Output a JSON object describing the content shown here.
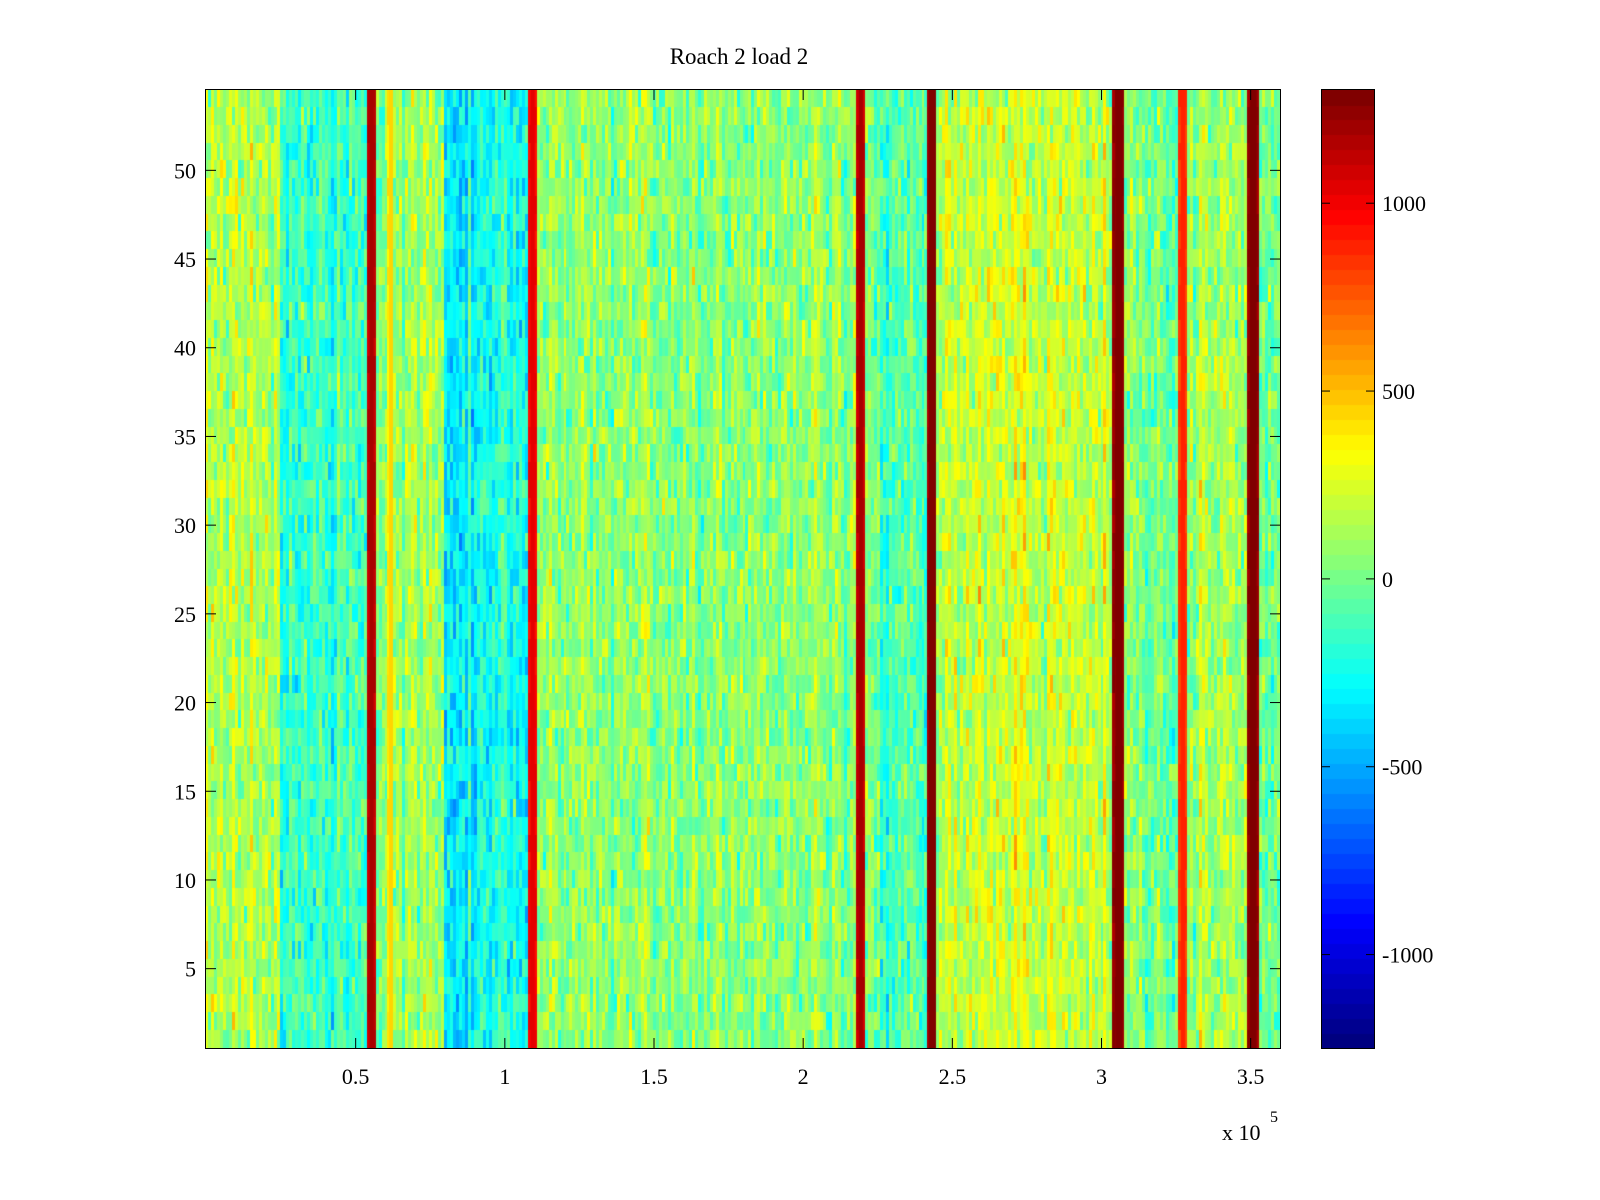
{
  "chart_data": {
    "type": "heatmap",
    "title": "Roach 2 load 2",
    "xlabel": "",
    "ylabel": "",
    "x_exponent_label": "x 10",
    "x_exponent_power": "5",
    "xlim": [
      0,
      360000
    ],
    "ylim": [
      0.5,
      54.5
    ],
    "rows": 54,
    "columns": 360,
    "x_ticks": [
      {
        "value": 0.5,
        "label": "0.5"
      },
      {
        "value": 1,
        "label": "1"
      },
      {
        "value": 1.5,
        "label": "1.5"
      },
      {
        "value": 2,
        "label": "2"
      },
      {
        "value": 2.5,
        "label": "2.5"
      },
      {
        "value": 3,
        "label": "3"
      },
      {
        "value": 3.5,
        "label": "3.5"
      }
    ],
    "y_ticks": [
      {
        "value": 5,
        "label": "5"
      },
      {
        "value": 10,
        "label": "10"
      },
      {
        "value": 15,
        "label": "15"
      },
      {
        "value": 20,
        "label": "20"
      },
      {
        "value": 25,
        "label": "25"
      },
      {
        "value": 30,
        "label": "30"
      },
      {
        "value": 35,
        "label": "35"
      },
      {
        "value": 40,
        "label": "40"
      },
      {
        "value": 45,
        "label": "45"
      },
      {
        "value": 50,
        "label": "50"
      }
    ],
    "colorbar": {
      "colormap": "jet",
      "clim": [
        -1250,
        1300
      ],
      "ticks": [
        {
          "value": 1000,
          "label": "1000"
        },
        {
          "value": 500,
          "label": "500"
        },
        {
          "value": 0,
          "label": "0"
        },
        {
          "value": -500,
          "label": "-500"
        },
        {
          "value": -1000,
          "label": "-1000"
        }
      ]
    },
    "stripes": [
      {
        "x": 55500,
        "value": 1200
      },
      {
        "x": 62000,
        "value": 450
      },
      {
        "x": 109500,
        "value": 1050
      },
      {
        "x": 219500,
        "value": 1200
      },
      {
        "x": 243500,
        "value": 1300
      },
      {
        "x": 306000,
        "value": 1300
      },
      {
        "x": 327500,
        "value": 900
      },
      {
        "x": 351000,
        "value": 1300
      }
    ],
    "regions": [
      {
        "x_from": 0,
        "x_to": 25000,
        "level": 150
      },
      {
        "x_from": 25000,
        "x_to": 55000,
        "level": -150
      },
      {
        "x_from": 60000,
        "x_to": 80000,
        "level": 120
      },
      {
        "x_from": 80000,
        "x_to": 108000,
        "level": -250
      },
      {
        "x_from": 112000,
        "x_to": 219000,
        "level": 50
      },
      {
        "x_from": 222000,
        "x_to": 242000,
        "level": -100
      },
      {
        "x_from": 245000,
        "x_to": 305000,
        "level": 200
      },
      {
        "x_from": 308000,
        "x_to": 327000,
        "level": 0
      },
      {
        "x_from": 329000,
        "x_to": 350000,
        "level": 100
      },
      {
        "x_from": 352000,
        "x_to": 360000,
        "level": 0
      }
    ]
  }
}
